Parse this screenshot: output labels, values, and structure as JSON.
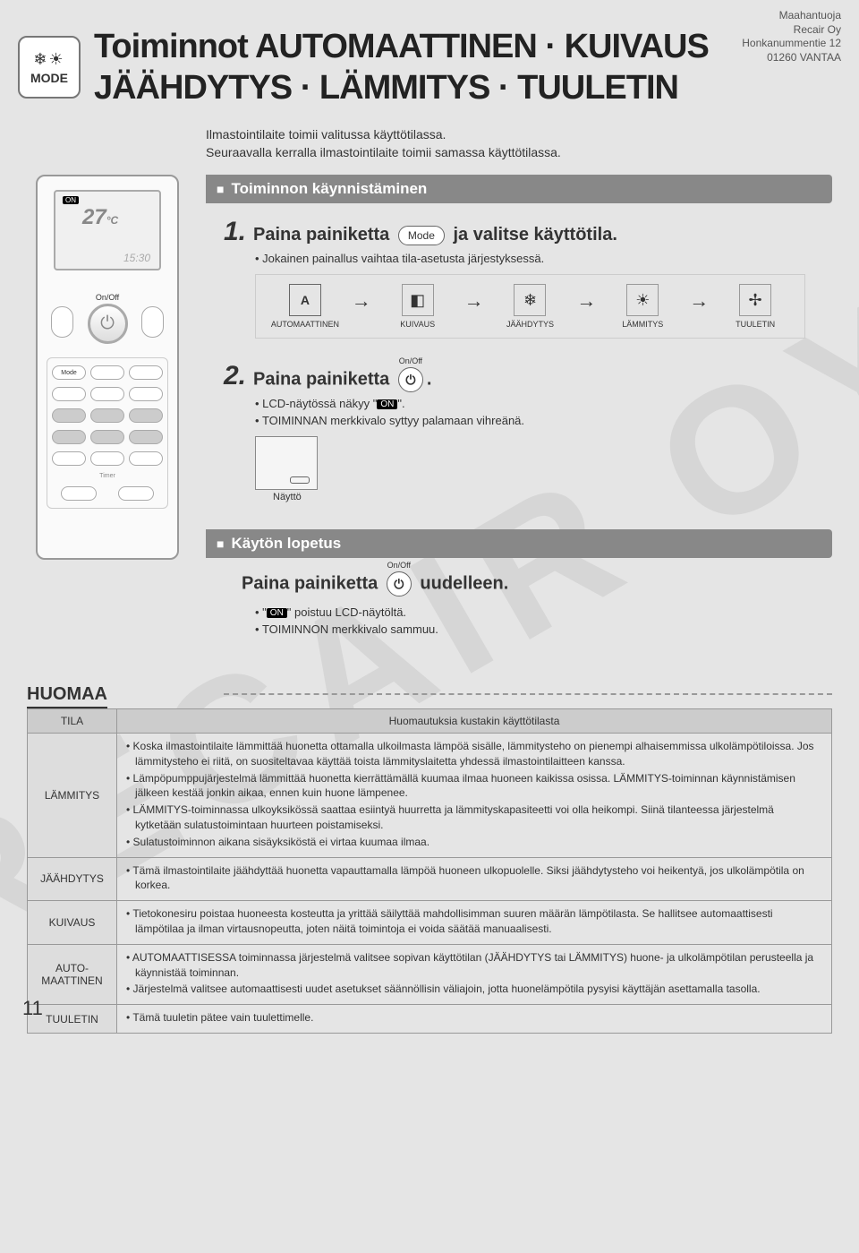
{
  "importer": {
    "label": "Maahantuoja",
    "company": "Recair Oy",
    "address": "Honkanummentie 12",
    "city": "01260 VANTAA"
  },
  "watermark": "RECAIR OY",
  "mode_icon_label": "MODE",
  "title_line1": "Toiminnot AUTOMAATTINEN · KUIVAUS",
  "title_line2": "JÄÄHDYTYS · LÄMMITYS · TUULETIN",
  "intro_line1": "Ilmastointilaite toimii valitussa käyttötilassa.",
  "intro_line2": "Seuraavalla kerralla ilmastointilaite toimii samassa käyttötilassa.",
  "remote": {
    "on": "ON",
    "temp": "27",
    "temp_unit": "°C",
    "time": "15:30",
    "onoff": "On/Off",
    "mode_btn": "Mode",
    "timer": "Timer"
  },
  "section_start": "Toiminnon käynnistäminen",
  "step1": {
    "num": "1.",
    "prefix": "Paina painiketta",
    "button": "Mode",
    "suffix": "ja valitse käyttötila.",
    "bullet": "Jokainen painallus vaihtaa tila-asetusta järjestyksessä."
  },
  "modes": {
    "auto": "AUTOMAATTINEN",
    "dry": "KUIVAUS",
    "cool": "JÄÄHDYTYS",
    "heat": "LÄMMITYS",
    "fan": "TUULETIN"
  },
  "mode_icons": {
    "auto": "A",
    "dry": "◧",
    "cool": "❄",
    "heat": "☀",
    "fan": "✢"
  },
  "step2": {
    "num": "2.",
    "prefix": "Paina painiketta",
    "onoff": "On/Off",
    "suffix": ".",
    "bullet1_prefix": "LCD-näytössä näkyy \"",
    "bullet1_badge": "ON",
    "bullet1_suffix": "\".",
    "bullet2": "TOIMINNAN merkkivalo syttyy palamaan vihreänä.",
    "display_label": "Näyttö"
  },
  "section_stop": "Käytön lopetus",
  "stop": {
    "prefix": "Paina painiketta",
    "onoff": "On/Off",
    "suffix": "uudelleen.",
    "bullet1_prefix": "\"",
    "bullet1_badge": "ON",
    "bullet1_suffix": "\" poistuu LCD-näytöltä.",
    "bullet2": "TOIMINNON merkkivalo sammuu."
  },
  "huomaa": "HUOMAA",
  "table": {
    "col_tila": "TILA",
    "col_notes": "Huomautuksia kustakin käyttötilasta",
    "rows": [
      {
        "tila": "LÄMMITYS",
        "items": [
          "Koska ilmastointilaite lämmittää huonetta ottamalla ulkoilmasta lämpöä sisälle, lämmitysteho on pienempi alhaisemmissa ulkolämpötiloissa. Jos lämmitysteho ei riitä, on suositeltavaa käyttää toista lämmityslaitetta yhdessä ilmastointilaitteen kanssa.",
          "Lämpöpumppujärjestelmä lämmittää huonetta kierrättämällä kuumaa ilmaa huoneen kaikissa osissa. LÄMMITYS-toiminnan käynnistämisen jälkeen kestää jonkin aikaa, ennen kuin huone lämpenee.",
          "LÄMMITYS-toiminnassa ulkoyksikössä saattaa esiintyä huurretta ja lämmityskapasiteetti voi olla heikompi. Siinä tilanteessa järjestelmä kytketään sulatustoimintaan huurteen poistamiseksi.",
          "Sulatustoiminnon aikana sisäyksiköstä ei virtaa kuumaa ilmaa."
        ]
      },
      {
        "tila": "JÄÄHDYTYS",
        "items": [
          "Tämä ilmastointilaite jäähdyttää huonetta vapauttamalla lämpöä huoneen ulkopuolelle. Siksi jäähdytysteho voi heikentyä, jos ulkolämpötila on korkea."
        ]
      },
      {
        "tila": "KUIVAUS",
        "items": [
          "Tietokonesiru poistaa huoneesta kosteutta ja yrittää säilyttää mahdollisimman suuren määrän lämpötilasta. Se hallitsee automaattisesti lämpötilaa ja ilman virtausnopeutta, joten näitä toimintoja ei voida säätää manuaalisesti."
        ]
      },
      {
        "tila": "AUTO-MAATTINEN",
        "items": [
          "AUTOMAATTISESSA toiminnassa järjestelmä valitsee sopivan käyttötilan (JÄÄHDYTYS tai LÄMMITYS) huone- ja ulkolämpötilan perusteella ja käynnistää toiminnan.",
          "Järjestelmä valitsee automaattisesti uudet asetukset säännöllisin väliajoin, jotta huonelämpötila pysyisi käyttäjän asettamalla tasolla."
        ]
      },
      {
        "tila": "TUULETIN",
        "items": [
          "Tämä tuuletin pätee vain tuulettimelle."
        ]
      }
    ]
  },
  "page_number": "11"
}
